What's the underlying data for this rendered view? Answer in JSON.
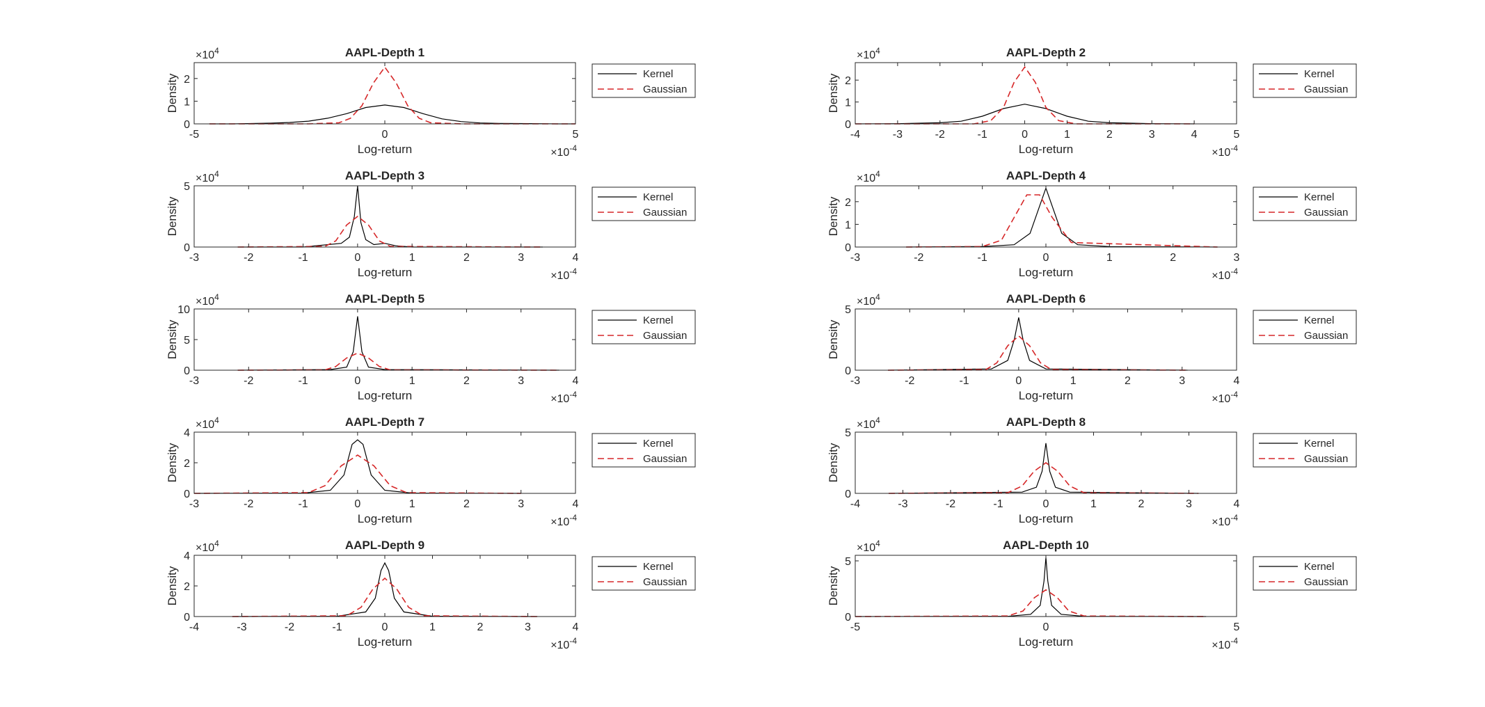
{
  "figure": {
    "legend_labels": [
      "Kernel",
      "Gaussian"
    ],
    "colors": {
      "kernel": "#000000",
      "gaussian": "#d62728",
      "axis": "#262626"
    },
    "exponent_base": "×10",
    "y_exponent": "4",
    "x_exponent": "-4"
  },
  "chart_data": [
    {
      "type": "line",
      "title": "AAPL-Depth 1",
      "xlabel": "Log-return",
      "ylabel": "Density",
      "xlim": [
        -5,
        5
      ],
      "xticks": [
        -5,
        0,
        5
      ],
      "ylim": [
        0,
        2.7
      ],
      "yticks": [
        0,
        1,
        2
      ],
      "x_scale_exponent": -4,
      "y_scale_exponent": 4,
      "legend_position": "outside-right",
      "grid": false,
      "series": [
        {
          "name": "Kernel",
          "style": "solid",
          "x": [
            -4.6,
            -4,
            -3,
            -2.5,
            -2,
            -1.5,
            -1,
            -0.5,
            0,
            0.5,
            1,
            1.5,
            2,
            2.5,
            3,
            4,
            4.5,
            5
          ],
          "y": [
            0,
            0,
            0.03,
            0.06,
            0.12,
            0.25,
            0.45,
            0.72,
            0.83,
            0.72,
            0.45,
            0.22,
            0.1,
            0.04,
            0.02,
            0.01,
            0,
            0
          ]
        },
        {
          "name": "Gaussian",
          "style": "dashed",
          "x": [
            -4.6,
            -2,
            -1.2,
            -0.9,
            -0.6,
            -0.3,
            0,
            0.3,
            0.6,
            0.9,
            1.2,
            2,
            5
          ],
          "y": [
            0,
            0,
            0.05,
            0.25,
            0.8,
            1.8,
            2.5,
            1.8,
            0.8,
            0.25,
            0.05,
            0,
            0
          ]
        }
      ]
    },
    {
      "type": "line",
      "title": "AAPL-Depth 2",
      "xlabel": "Log-return",
      "ylabel": "Density",
      "xlim": [
        -4,
        5
      ],
      "xticks": [
        -4,
        -3,
        -2,
        -1,
        0,
        1,
        2,
        3,
        4,
        5
      ],
      "ylim": [
        0,
        2.8
      ],
      "yticks": [
        0,
        1,
        2
      ],
      "x_scale_exponent": -4,
      "y_scale_exponent": 4,
      "legend_position": "outside-right",
      "grid": false,
      "series": [
        {
          "name": "Kernel",
          "style": "solid",
          "x": [
            -4,
            -3,
            -2,
            -1.5,
            -1,
            -0.5,
            0,
            0.5,
            1,
            1.5,
            2,
            3,
            4
          ],
          "y": [
            0,
            0.01,
            0.05,
            0.12,
            0.35,
            0.7,
            0.9,
            0.7,
            0.35,
            0.12,
            0.05,
            0.01,
            0
          ]
        },
        {
          "name": "Gaussian",
          "style": "dashed",
          "x": [
            -4,
            -1.2,
            -0.8,
            -0.5,
            -0.25,
            0,
            0.25,
            0.5,
            0.8,
            1.2,
            4
          ],
          "y": [
            0,
            0,
            0.15,
            0.75,
            1.9,
            2.6,
            1.9,
            0.75,
            0.15,
            0,
            0
          ]
        }
      ]
    },
    {
      "type": "line",
      "title": "AAPL-Depth 3",
      "xlabel": "Log-return",
      "ylabel": "Density",
      "xlim": [
        -3,
        4
      ],
      "xticks": [
        -3,
        -2,
        -1,
        0,
        1,
        2,
        3,
        4
      ],
      "ylim": [
        0,
        5
      ],
      "yticks": [
        0,
        5
      ],
      "x_scale_exponent": -4,
      "y_scale_exponent": 4,
      "legend_position": "outside-right",
      "grid": false,
      "series": [
        {
          "name": "Kernel",
          "style": "solid",
          "x": [
            -2.2,
            -1,
            -0.3,
            -0.15,
            -0.06,
            0,
            0.06,
            0.15,
            0.3,
            0.5,
            0.7,
            1,
            2,
            3.4
          ],
          "y": [
            0,
            0,
            0.3,
            0.8,
            2.5,
            5,
            2,
            0.6,
            0.2,
            0.3,
            0.1,
            0,
            0,
            0
          ]
        },
        {
          "name": "Gaussian",
          "style": "dashed",
          "x": [
            -2.2,
            -0.6,
            -0.4,
            -0.2,
            0,
            0.2,
            0.4,
            0.6,
            3.4
          ],
          "y": [
            0,
            0.05,
            0.5,
            1.8,
            2.5,
            1.8,
            0.5,
            0.05,
            0
          ]
        }
      ]
    },
    {
      "type": "line",
      "title": "AAPL-Depth 4",
      "xlabel": "Log-return",
      "ylabel": "Density",
      "xlim": [
        -3,
        3
      ],
      "xticks": [
        -3,
        -2,
        -1,
        0,
        1,
        2,
        3
      ],
      "ylim": [
        0,
        2.7
      ],
      "yticks": [
        0,
        1,
        2
      ],
      "x_scale_exponent": -4,
      "y_scale_exponent": 4,
      "legend_position": "outside-right",
      "grid": false,
      "series": [
        {
          "name": "Kernel",
          "style": "solid",
          "x": [
            -2.2,
            -1,
            -0.5,
            -0.25,
            -0.1,
            0,
            0.1,
            0.25,
            0.5,
            1,
            2.7
          ],
          "y": [
            0,
            0.02,
            0.1,
            0.6,
            1.8,
            2.6,
            1.8,
            0.6,
            0.1,
            0.02,
            0
          ]
        },
        {
          "name": "Gaussian",
          "style": "dashed",
          "x": [
            -2.2,
            -1,
            -0.7,
            -0.5,
            -0.3,
            -0.1,
            0.1,
            0.4,
            2.7
          ],
          "y": [
            0,
            0.02,
            0.3,
            1.3,
            2.3,
            2.3,
            1.3,
            0.2,
            0
          ]
        }
      ]
    },
    {
      "type": "line",
      "title": "AAPL-Depth 5",
      "xlabel": "Log-return",
      "ylabel": "Density",
      "xlim": [
        -3,
        4
      ],
      "xticks": [
        -3,
        -2,
        -1,
        0,
        1,
        2,
        3,
        4
      ],
      "ylim": [
        0,
        10
      ],
      "yticks": [
        0,
        5,
        10
      ],
      "x_scale_exponent": -4,
      "y_scale_exponent": 4,
      "legend_position": "outside-right",
      "grid": false,
      "series": [
        {
          "name": "Kernel",
          "style": "solid",
          "x": [
            -2.2,
            -0.5,
            -0.2,
            -0.08,
            0,
            0.08,
            0.2,
            0.5,
            3.7
          ],
          "y": [
            0,
            0.1,
            0.5,
            3,
            8.8,
            3,
            0.5,
            0.1,
            0
          ]
        },
        {
          "name": "Gaussian",
          "style": "dashed",
          "x": [
            -2.2,
            -0.6,
            -0.4,
            -0.2,
            0,
            0.2,
            0.4,
            0.6,
            3.7
          ],
          "y": [
            0,
            0.05,
            0.6,
            2,
            2.8,
            2,
            0.6,
            0.05,
            0
          ]
        }
      ]
    },
    {
      "type": "line",
      "title": "AAPL-Depth 6",
      "xlabel": "Log-return",
      "ylabel": "Density",
      "xlim": [
        -3,
        4
      ],
      "xticks": [
        -3,
        -2,
        -1,
        0,
        1,
        2,
        3,
        4
      ],
      "ylim": [
        0,
        5
      ],
      "yticks": [
        0,
        5
      ],
      "x_scale_exponent": -4,
      "y_scale_exponent": 4,
      "legend_position": "outside-right",
      "grid": false,
      "series": [
        {
          "name": "Kernel",
          "style": "solid",
          "x": [
            -2.4,
            -0.5,
            -0.2,
            -0.08,
            0,
            0.08,
            0.2,
            0.5,
            3.1
          ],
          "y": [
            0,
            0.1,
            0.8,
            2.5,
            4.3,
            2.5,
            0.8,
            0.1,
            0
          ]
        },
        {
          "name": "Gaussian",
          "style": "dashed",
          "x": [
            -2.4,
            -0.6,
            -0.4,
            -0.2,
            0,
            0.2,
            0.4,
            0.6,
            3.1
          ],
          "y": [
            0,
            0.05,
            0.6,
            2,
            2.8,
            2,
            0.6,
            0.05,
            0
          ]
        }
      ]
    },
    {
      "type": "line",
      "title": "AAPL-Depth 7",
      "xlabel": "Log-return",
      "ylabel": "Density",
      "xlim": [
        -3,
        4
      ],
      "xticks": [
        -3,
        -2,
        -1,
        0,
        1,
        2,
        3,
        4
      ],
      "ylim": [
        0,
        4
      ],
      "yticks": [
        0,
        2,
        4
      ],
      "x_scale_exponent": -4,
      "y_scale_exponent": 4,
      "legend_position": "outside-right",
      "grid": false,
      "series": [
        {
          "name": "Kernel",
          "style": "solid",
          "x": [
            -3,
            -1,
            -0.5,
            -0.25,
            -0.1,
            0,
            0.1,
            0.25,
            0.5,
            1,
            3
          ],
          "y": [
            0,
            0.02,
            0.2,
            1.2,
            3.2,
            3.5,
            3.2,
            1.2,
            0.2,
            0.02,
            0
          ]
        },
        {
          "name": "Gaussian",
          "style": "dashed",
          "x": [
            -3,
            -0.9,
            -0.6,
            -0.3,
            0,
            0.3,
            0.6,
            0.9,
            3
          ],
          "y": [
            0,
            0.05,
            0.5,
            1.8,
            2.5,
            1.8,
            0.5,
            0.05,
            0
          ]
        }
      ]
    },
    {
      "type": "line",
      "title": "AAPL-Depth 8",
      "xlabel": "Log-return",
      "ylabel": "Density",
      "xlim": [
        -4,
        4
      ],
      "xticks": [
        -4,
        -3,
        -2,
        -1,
        0,
        1,
        2,
        3,
        4
      ],
      "ylim": [
        0,
        5
      ],
      "yticks": [
        0,
        5
      ],
      "x_scale_exponent": -4,
      "y_scale_exponent": 4,
      "legend_position": "outside-right",
      "grid": false,
      "series": [
        {
          "name": "Kernel",
          "style": "solid",
          "x": [
            -3.3,
            -0.5,
            -0.2,
            -0.08,
            0,
            0.08,
            0.2,
            0.5,
            3.2
          ],
          "y": [
            0,
            0.1,
            0.5,
            1.8,
            4.1,
            1.8,
            0.5,
            0.1,
            0
          ]
        },
        {
          "name": "Gaussian",
          "style": "dashed",
          "x": [
            -3.3,
            -0.8,
            -0.5,
            -0.25,
            0,
            0.25,
            0.5,
            0.8,
            3.2
          ],
          "y": [
            0,
            0.05,
            0.6,
            1.8,
            2.5,
            1.8,
            0.6,
            0.05,
            0
          ]
        }
      ]
    },
    {
      "type": "line",
      "title": "AAPL-Depth 9",
      "xlabel": "Log-return",
      "ylabel": "Density",
      "xlim": [
        -4,
        4
      ],
      "xticks": [
        -4,
        -3,
        -2,
        -1,
        0,
        1,
        2,
        3,
        4
      ],
      "ylim": [
        0,
        4
      ],
      "yticks": [
        0,
        2,
        4
      ],
      "x_scale_exponent": -4,
      "y_scale_exponent": 4,
      "legend_position": "outside-right",
      "grid": false,
      "series": [
        {
          "name": "Kernel",
          "style": "solid",
          "x": [
            -3.2,
            -1,
            -0.4,
            -0.2,
            -0.08,
            0,
            0.08,
            0.2,
            0.4,
            1,
            3.2
          ],
          "y": [
            0,
            0.02,
            0.3,
            1.2,
            3,
            3.5,
            3,
            1.2,
            0.3,
            0.02,
            0
          ]
        },
        {
          "name": "Gaussian",
          "style": "dashed",
          "x": [
            -3.2,
            -0.8,
            -0.5,
            -0.25,
            0,
            0.25,
            0.5,
            0.8,
            3.2
          ],
          "y": [
            0,
            0.05,
            0.6,
            1.8,
            2.5,
            1.8,
            0.6,
            0.05,
            0
          ]
        }
      ]
    },
    {
      "type": "line",
      "title": "AAPL-Depth 10",
      "xlabel": "Log-return",
      "ylabel": "Density",
      "xlim": [
        -5,
        5
      ],
      "xticks": [
        -5,
        0,
        5
      ],
      "ylim": [
        0,
        5.5
      ],
      "yticks": [
        0,
        5
      ],
      "x_scale_exponent": -4,
      "y_scale_exponent": 4,
      "legend_position": "outside-right",
      "grid": false,
      "series": [
        {
          "name": "Kernel",
          "style": "solid",
          "x": [
            -5,
            -1,
            -0.4,
            -0.15,
            -0.05,
            0,
            0.05,
            0.15,
            0.4,
            1,
            4.2
          ],
          "y": [
            0,
            0.02,
            0.2,
            1,
            3.2,
            5.3,
            3.2,
            1,
            0.2,
            0.02,
            0
          ]
        },
        {
          "name": "Gaussian",
          "style": "dashed",
          "x": [
            -5,
            -1,
            -0.6,
            -0.3,
            0,
            0.3,
            0.6,
            1,
            4.2
          ],
          "y": [
            0,
            0.05,
            0.5,
            1.7,
            2.4,
            1.7,
            0.5,
            0.05,
            0
          ]
        }
      ]
    }
  ]
}
